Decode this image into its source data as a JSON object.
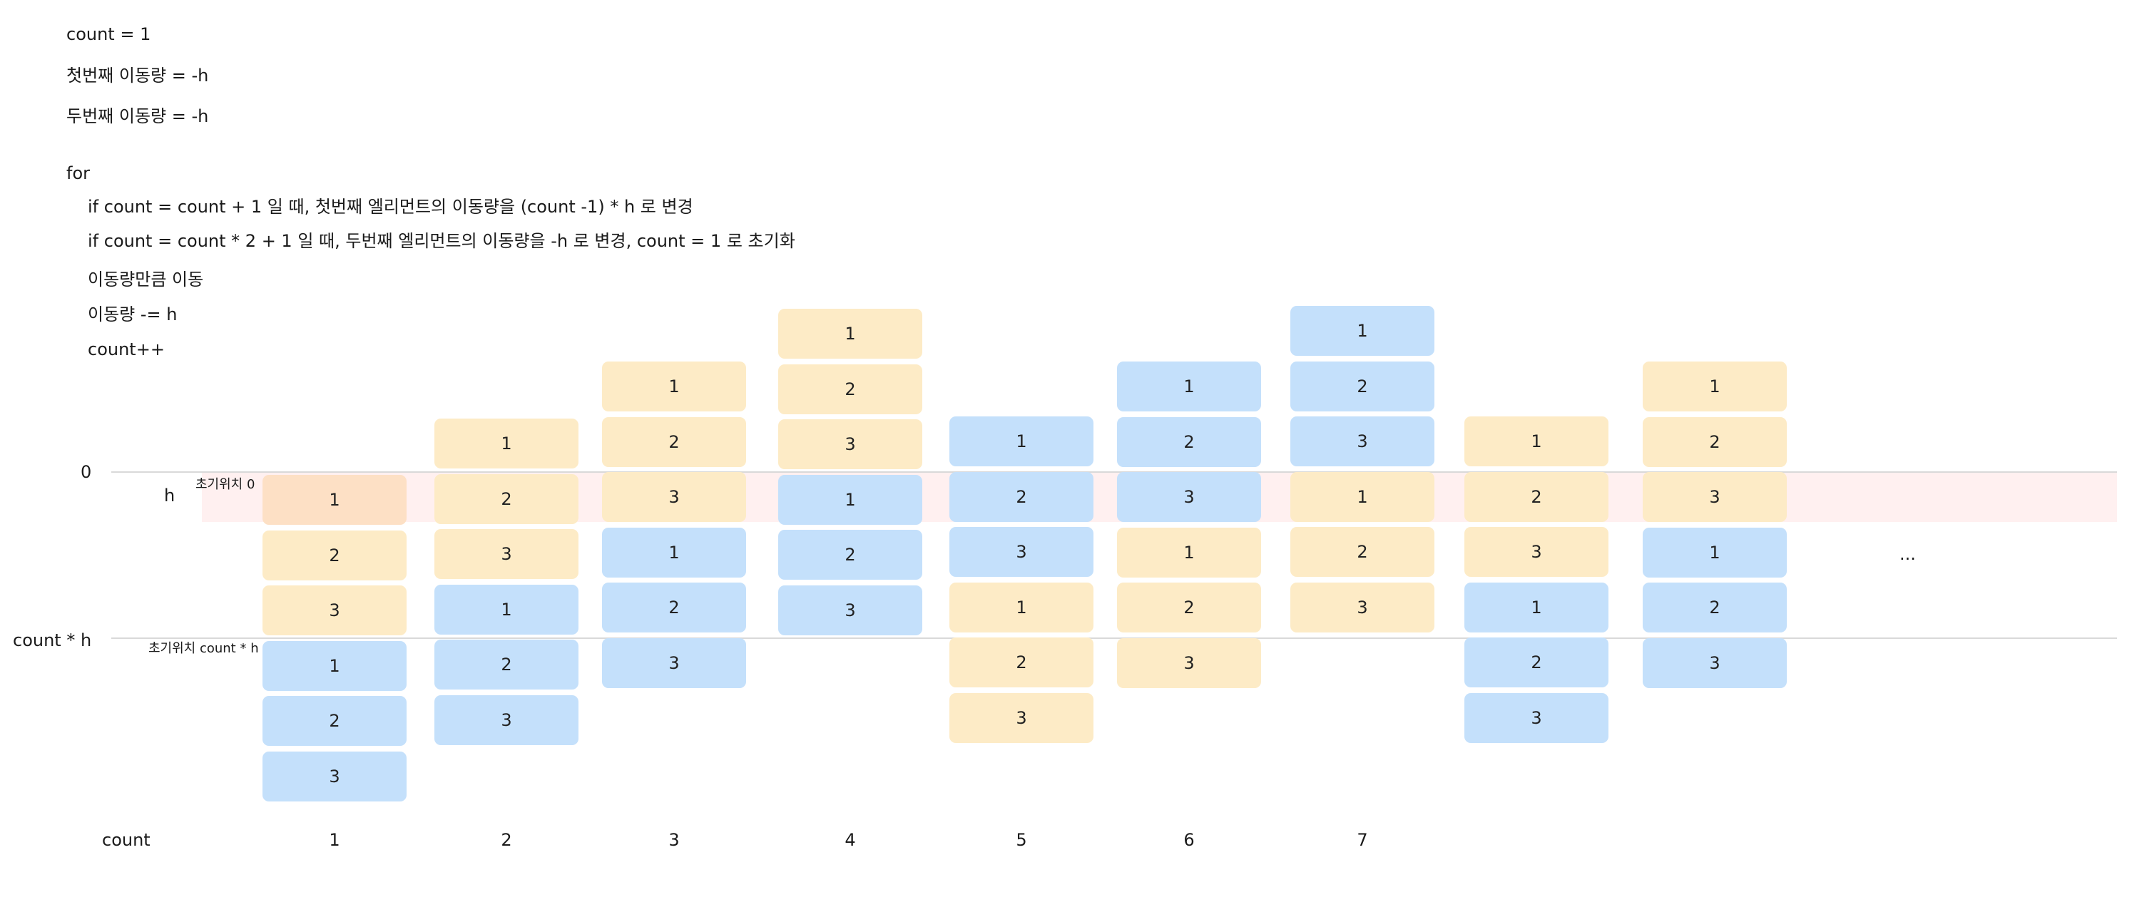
{
  "code": {
    "lines": [
      "count = 1",
      "첫번째 이동량 = -h",
      "두번째 이동량 = -h",
      "for",
      "if count = count + 1  일 때, 첫번째 엘리먼트의 이동량을 (count -1) * h  로 변경",
      "if count = count * 2 + 1 일 때, 두번째 엘리먼트의 이동량을 -h 로 변경, count = 1 로 초기화",
      "이동량만큼 이동",
      "이동량 -= h",
      "count++"
    ]
  },
  "axis": {
    "zero_label": "0",
    "h_label": "h",
    "count_h_label": "count  * h",
    "initial_zero_label": "초기위치 0",
    "initial_count_h_label": "초기위치 count * h",
    "count_row_label": "count",
    "ellipsis": "..."
  },
  "columns": [
    {
      "count": "1",
      "boxes": [
        {
          "label": "1",
          "color": "#fde0c5"
        },
        {
          "label": "2",
          "color": "#fdebc6"
        },
        {
          "label": "3",
          "color": "#fdebc6"
        },
        {
          "label": "1",
          "color": "#c4e0fb"
        },
        {
          "label": "2",
          "color": "#c4e0fb"
        },
        {
          "label": "3",
          "color": "#c4e0fb"
        }
      ]
    },
    {
      "count": "2",
      "boxes": [
        {
          "label": "1",
          "color": "#fdebc6"
        },
        {
          "label": "2",
          "color": "#fdebc6"
        },
        {
          "label": "3",
          "color": "#fdebc6"
        },
        {
          "label": "1",
          "color": "#c4e0fb"
        },
        {
          "label": "2",
          "color": "#c4e0fb"
        },
        {
          "label": "3",
          "color": "#c4e0fb"
        }
      ]
    },
    {
      "count": "3",
      "boxes": [
        {
          "label": "1",
          "color": "#fdebc6"
        },
        {
          "label": "2",
          "color": "#fdebc6"
        },
        {
          "label": "3",
          "color": "#fdebc6"
        },
        {
          "label": "1",
          "color": "#c4e0fb"
        },
        {
          "label": "2",
          "color": "#c4e0fb"
        },
        {
          "label": "3",
          "color": "#c4e0fb"
        }
      ]
    },
    {
      "count": "4",
      "boxes": [
        {
          "label": "1",
          "color": "#fdebc6"
        },
        {
          "label": "2",
          "color": "#fdebc6"
        },
        {
          "label": "3",
          "color": "#fdebc6"
        },
        {
          "label": "1",
          "color": "#c4e0fb"
        },
        {
          "label": "2",
          "color": "#c4e0fb"
        },
        {
          "label": "3",
          "color": "#c4e0fb"
        }
      ]
    },
    {
      "count": "5",
      "boxes": [
        {
          "label": "1",
          "color": "#c4e0fb"
        },
        {
          "label": "2",
          "color": "#c4e0fb"
        },
        {
          "label": "3",
          "color": "#c4e0fb"
        },
        {
          "label": "1",
          "color": "#fdebc6"
        },
        {
          "label": "2",
          "color": "#fdebc6"
        },
        {
          "label": "3",
          "color": "#fdebc6"
        }
      ]
    },
    {
      "count": "6",
      "boxes": [
        {
          "label": "1",
          "color": "#c4e0fb"
        },
        {
          "label": "2",
          "color": "#c4e0fb"
        },
        {
          "label": "3",
          "color": "#c4e0fb"
        },
        {
          "label": "1",
          "color": "#fdebc6"
        },
        {
          "label": "2",
          "color": "#fdebc6"
        },
        {
          "label": "3",
          "color": "#fdebc6"
        }
      ]
    },
    {
      "count": "7",
      "boxes": [
        {
          "label": "1",
          "color": "#c4e0fb"
        },
        {
          "label": "2",
          "color": "#c4e0fb"
        },
        {
          "label": "3",
          "color": "#c4e0fb"
        },
        {
          "label": "1",
          "color": "#fdebc6"
        },
        {
          "label": "2",
          "color": "#fdebc6"
        },
        {
          "label": "3",
          "color": "#fdebc6"
        }
      ]
    },
    {
      "count": "",
      "boxes": [
        {
          "label": "1",
          "color": "#fdebc6"
        },
        {
          "label": "2",
          "color": "#fdebc6"
        },
        {
          "label": "3",
          "color": "#fdebc6"
        },
        {
          "label": "1",
          "color": "#c4e0fb"
        },
        {
          "label": "2",
          "color": "#c4e0fb"
        },
        {
          "label": "3",
          "color": "#c4e0fb"
        }
      ]
    },
    {
      "count": "",
      "boxes": [
        {
          "label": "1",
          "color": "#fdebc6"
        },
        {
          "label": "2",
          "color": "#fdebc6"
        },
        {
          "label": "3",
          "color": "#fdebc6"
        },
        {
          "label": "1",
          "color": "#c4e0fb"
        },
        {
          "label": "2",
          "color": "#c4e0fb"
        },
        {
          "label": "3",
          "color": "#c4e0fb"
        }
      ]
    }
  ],
  "colors": {
    "yellow": "#fdebc6",
    "blue": "#c4e0fb",
    "highlight": "#fde0c5",
    "band": "#fff0f0",
    "line": "#d9d9d9"
  }
}
